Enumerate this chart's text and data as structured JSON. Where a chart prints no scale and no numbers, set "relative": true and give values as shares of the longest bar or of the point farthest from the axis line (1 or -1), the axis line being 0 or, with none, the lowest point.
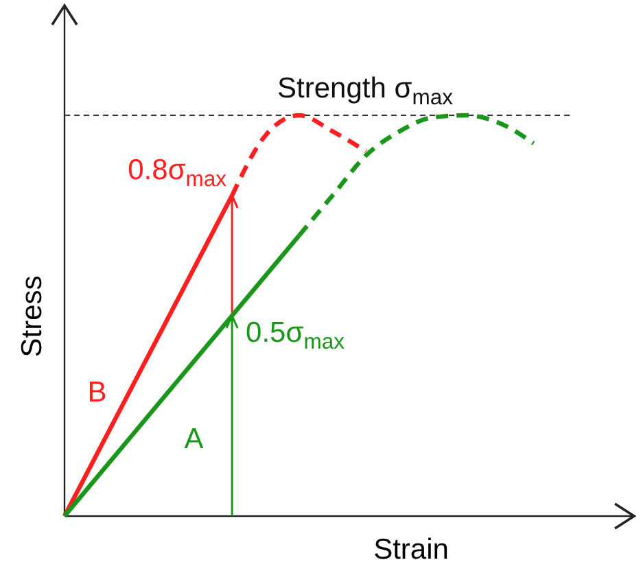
{
  "chart_data": {
    "type": "line",
    "relative": true,
    "xlabel": "Strain",
    "ylabel": "Stress",
    "categories": [
      null,
      null,
      null,
      null,
      null,
      null,
      null,
      null,
      null,
      null,
      null,
      null,
      null,
      null,
      null,
      null,
      null,
      null
    ],
    "series": [
      {
        "name": "B",
        "color": "#ff1f1f",
        "line_style": "solid",
        "values": [
          0,
          0.16,
          0.32,
          0.48,
          0.64,
          0.8,
          null,
          null,
          null,
          null,
          null,
          null,
          null,
          null,
          null,
          null,
          null,
          null
        ]
      },
      {
        "color": "#ff1f1f",
        "line_style": "dashed",
        "values": [
          null,
          null,
          null,
          null,
          null,
          0.8,
          0.95,
          1,
          0.96,
          0.91,
          null,
          null,
          null,
          null,
          null,
          null,
          null,
          null
        ]
      },
      {
        "name": "A",
        "color": "#1a961a",
        "line_style": "solid",
        "values": [
          0,
          0.1,
          0.2,
          0.3,
          0.4,
          0.5,
          0.6,
          0.7,
          null,
          null,
          null,
          null,
          null,
          null,
          null,
          null,
          null,
          null
        ]
      },
      {
        "color": "#1a961a",
        "line_style": "dashed",
        "values": [
          null,
          null,
          null,
          null,
          null,
          null,
          null,
          0.7,
          0.8,
          0.9,
          0.96,
          0.995,
          1,
          0.98,
          0.93,
          null,
          null,
          null
        ]
      }
    ],
    "ref_lines": [
      {
        "axis": "y",
        "value": 1,
        "label": "Strength σ$_{max}$",
        "color": "#333333",
        "line_style": "dashed"
      }
    ],
    "annotations": [
      "0.8σ$_{max}$",
      "0.5σ$_{max}$"
    ],
    "marker": "none"
  }
}
